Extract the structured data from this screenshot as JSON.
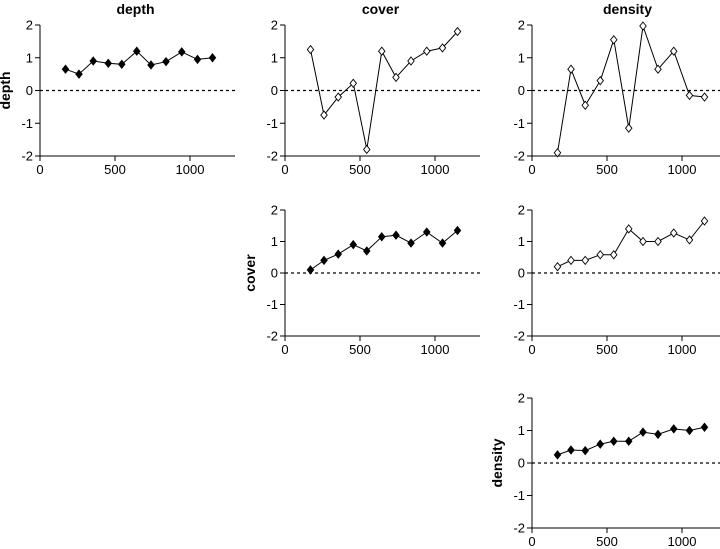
{
  "chart_data": {
    "type": "scatter-matrix",
    "column_titles": [
      "depth",
      "cover",
      "density"
    ],
    "row_labels": [
      "depth",
      "cover",
      "density"
    ],
    "x": [
      170,
      260,
      355,
      455,
      545,
      645,
      740,
      840,
      945,
      1050,
      1150
    ],
    "xlim": [
      0,
      1300
    ],
    "ylim": [
      -2,
      2
    ],
    "x_ticks": [
      0,
      500,
      1000
    ],
    "y_ticks": [
      -2,
      -1,
      0,
      1,
      2
    ],
    "reference_line_y": 0,
    "panels": [
      {
        "id": "depth-depth",
        "row": 0,
        "col": 0,
        "marker": "filled-diamond",
        "values": [
          0.65,
          0.5,
          0.9,
          0.83,
          0.8,
          1.2,
          0.78,
          0.88,
          1.18,
          0.95,
          1.0
        ]
      },
      {
        "id": "depth-cover",
        "row": 0,
        "col": 1,
        "marker": "open-diamond",
        "values": [
          1.25,
          -0.75,
          -0.2,
          0.22,
          -1.8,
          1.2,
          0.4,
          0.9,
          1.2,
          1.3,
          1.8
        ]
      },
      {
        "id": "depth-density",
        "row": 0,
        "col": 2,
        "marker": "open-diamond",
        "values": [
          -1.9,
          0.65,
          -0.45,
          0.3,
          1.55,
          -1.15,
          1.97,
          0.65,
          1.2,
          -0.15,
          -0.2
        ]
      },
      {
        "id": "cover-cover",
        "row": 1,
        "col": 1,
        "marker": "filled-diamond",
        "values": [
          0.1,
          0.4,
          0.6,
          0.9,
          0.7,
          1.15,
          1.2,
          0.95,
          1.3,
          0.95,
          1.35
        ]
      },
      {
        "id": "cover-density",
        "row": 1,
        "col": 2,
        "marker": "open-diamond",
        "values": [
          0.2,
          0.4,
          0.4,
          0.58,
          0.58,
          1.4,
          1.0,
          1.0,
          1.27,
          1.05,
          1.65
        ]
      },
      {
        "id": "density-density",
        "row": 2,
        "col": 2,
        "marker": "filled-diamond",
        "values": [
          0.25,
          0.4,
          0.38,
          0.58,
          0.67,
          0.67,
          0.95,
          0.88,
          1.05,
          1.0,
          1.1
        ]
      }
    ]
  }
}
